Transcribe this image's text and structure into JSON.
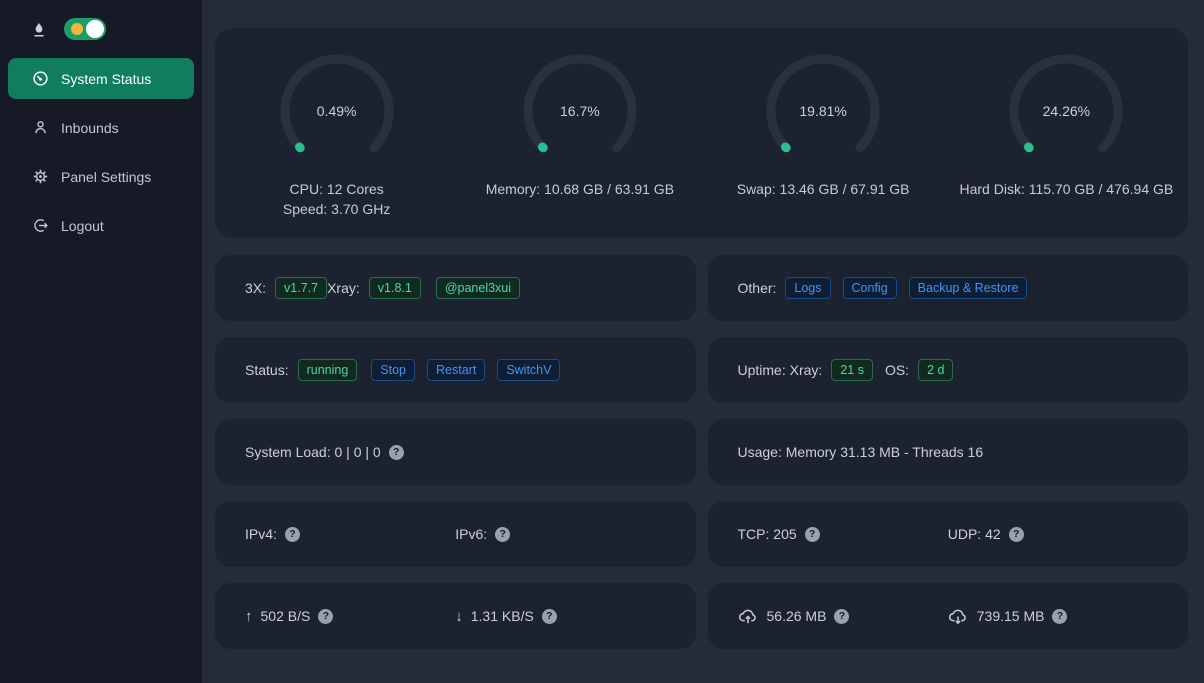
{
  "colors": {
    "page_bg": "#262b39",
    "sidebar_bg": "#161a26",
    "card_bg": "#1d2230",
    "accent_green": "#117d5f",
    "gauge_green": "#2bbf90",
    "gauge_track": "#2b3040",
    "tag_green_text": "#4fd6a8",
    "tag_blue_text": "#4493f0",
    "toggle_green": "#1c9e6b",
    "toggle_sun": "#f4b43e"
  },
  "icons": {
    "question": "?"
  },
  "sidebar": {
    "toggle_state": "on",
    "items": [
      {
        "label": "System Status",
        "icon": "dashboard-icon",
        "active": true
      },
      {
        "label": "Inbounds",
        "icon": "user-icon",
        "active": false
      },
      {
        "label": "Panel Settings",
        "icon": "gear-icon",
        "active": false
      },
      {
        "label": "Logout",
        "icon": "logout-icon",
        "active": false
      }
    ]
  },
  "chart_data": [
    {
      "type": "gauge",
      "metric": "CPU",
      "percent": 0.49,
      "display": "0.49%",
      "range": [
        0,
        100
      ],
      "span_deg": 270,
      "caption_lines": [
        "CPU: 12 Cores",
        "Speed: 3.70 GHz"
      ]
    },
    {
      "type": "gauge",
      "metric": "Memory",
      "percent": 16.7,
      "display": "16.7%",
      "range": [
        0,
        100
      ],
      "span_deg": 270,
      "caption_lines": [
        "Memory: 10.68 GB / 63.91 GB"
      ]
    },
    {
      "type": "gauge",
      "metric": "Swap",
      "percent": 19.81,
      "display": "19.81%",
      "range": [
        0,
        100
      ],
      "span_deg": 270,
      "caption_lines": [
        "Swap: 13.46 GB / 67.91 GB"
      ]
    },
    {
      "type": "gauge",
      "metric": "Hard Disk",
      "percent": 24.26,
      "display": "24.26%",
      "range": [
        0,
        100
      ],
      "span_deg": 270,
      "caption_lines": [
        "Hard Disk: 115.70 GB / 476.94 GB"
      ]
    }
  ],
  "rows": {
    "versions": {
      "label_3x": "3X:",
      "tag_3x": "v1.7.7",
      "label_xray": "Xray:",
      "tag_xray": "v1.8.1",
      "tag_channel": "@panel3xui"
    },
    "other": {
      "label": "Other:",
      "tags": [
        "Logs",
        "Config",
        "Backup & Restore"
      ]
    },
    "status": {
      "label": "Status:",
      "state_tag": "running",
      "actions": [
        "Stop",
        "Restart",
        "SwitchV"
      ]
    },
    "uptime": {
      "label": "Uptime: Xray:",
      "xray_tag": "21 s",
      "os_label": "OS:",
      "os_tag": "2 d"
    },
    "system_load": {
      "text": "System Load: 0 | 0 | 0"
    },
    "usage": {
      "text": "Usage: Memory 31.13 MB - Threads 16"
    },
    "ipv4": {
      "label": "IPv4:"
    },
    "ipv6": {
      "label": "IPv6:"
    },
    "tcp": {
      "text": "TCP: 205"
    },
    "udp": {
      "text": "UDP: 42"
    },
    "upload_speed": {
      "arrow": "↑",
      "text": "502 B/S"
    },
    "download_speed": {
      "arrow": "↓",
      "text": "1.31 KB/S"
    },
    "total_sent": {
      "text": "56.26 MB"
    },
    "total_received": {
      "text": "739.15 MB"
    }
  }
}
